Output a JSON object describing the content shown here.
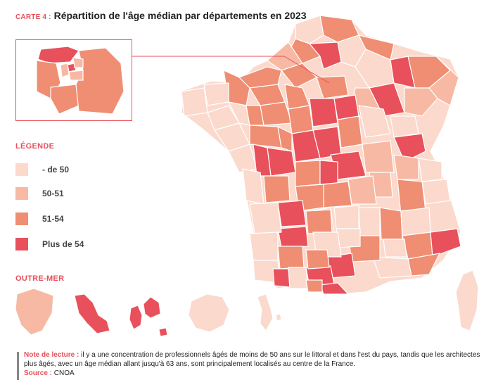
{
  "header": {
    "tag": "CARTE 4 :",
    "title": "Répartition de l'âge médian par départements en 2023"
  },
  "colors": {
    "under_50": "#fbd9cd",
    "range_50_51": "#f7b9a3",
    "range_51_54": "#ef8e72",
    "over_54": "#e8505b",
    "border": "#ffffff",
    "accent": "#e8505b"
  },
  "legend": {
    "heading": "LÉGENDE",
    "items": [
      {
        "label": "- de 50",
        "color": "#fbd9cd"
      },
      {
        "label": "50-51",
        "color": "#f7b9a3"
      },
      {
        "label": "51-54",
        "color": "#ef8e72"
      },
      {
        "label": "Plus de 54",
        "color": "#e8505b"
      }
    ]
  },
  "overseas": {
    "heading": "OUTRE-MER"
  },
  "note": {
    "label": "Note de lecture :",
    "text": "il y a une concentration de professionnels âgés de moins de 50 ans sur le littoral et dans l'est du pays, tandis que les architectes plus âgés, avec un âge médian allant jusqu'à 63 ans, sont principalement localisés au centre de la France.",
    "source_label": "Source :",
    "source": "CNOA"
  }
}
